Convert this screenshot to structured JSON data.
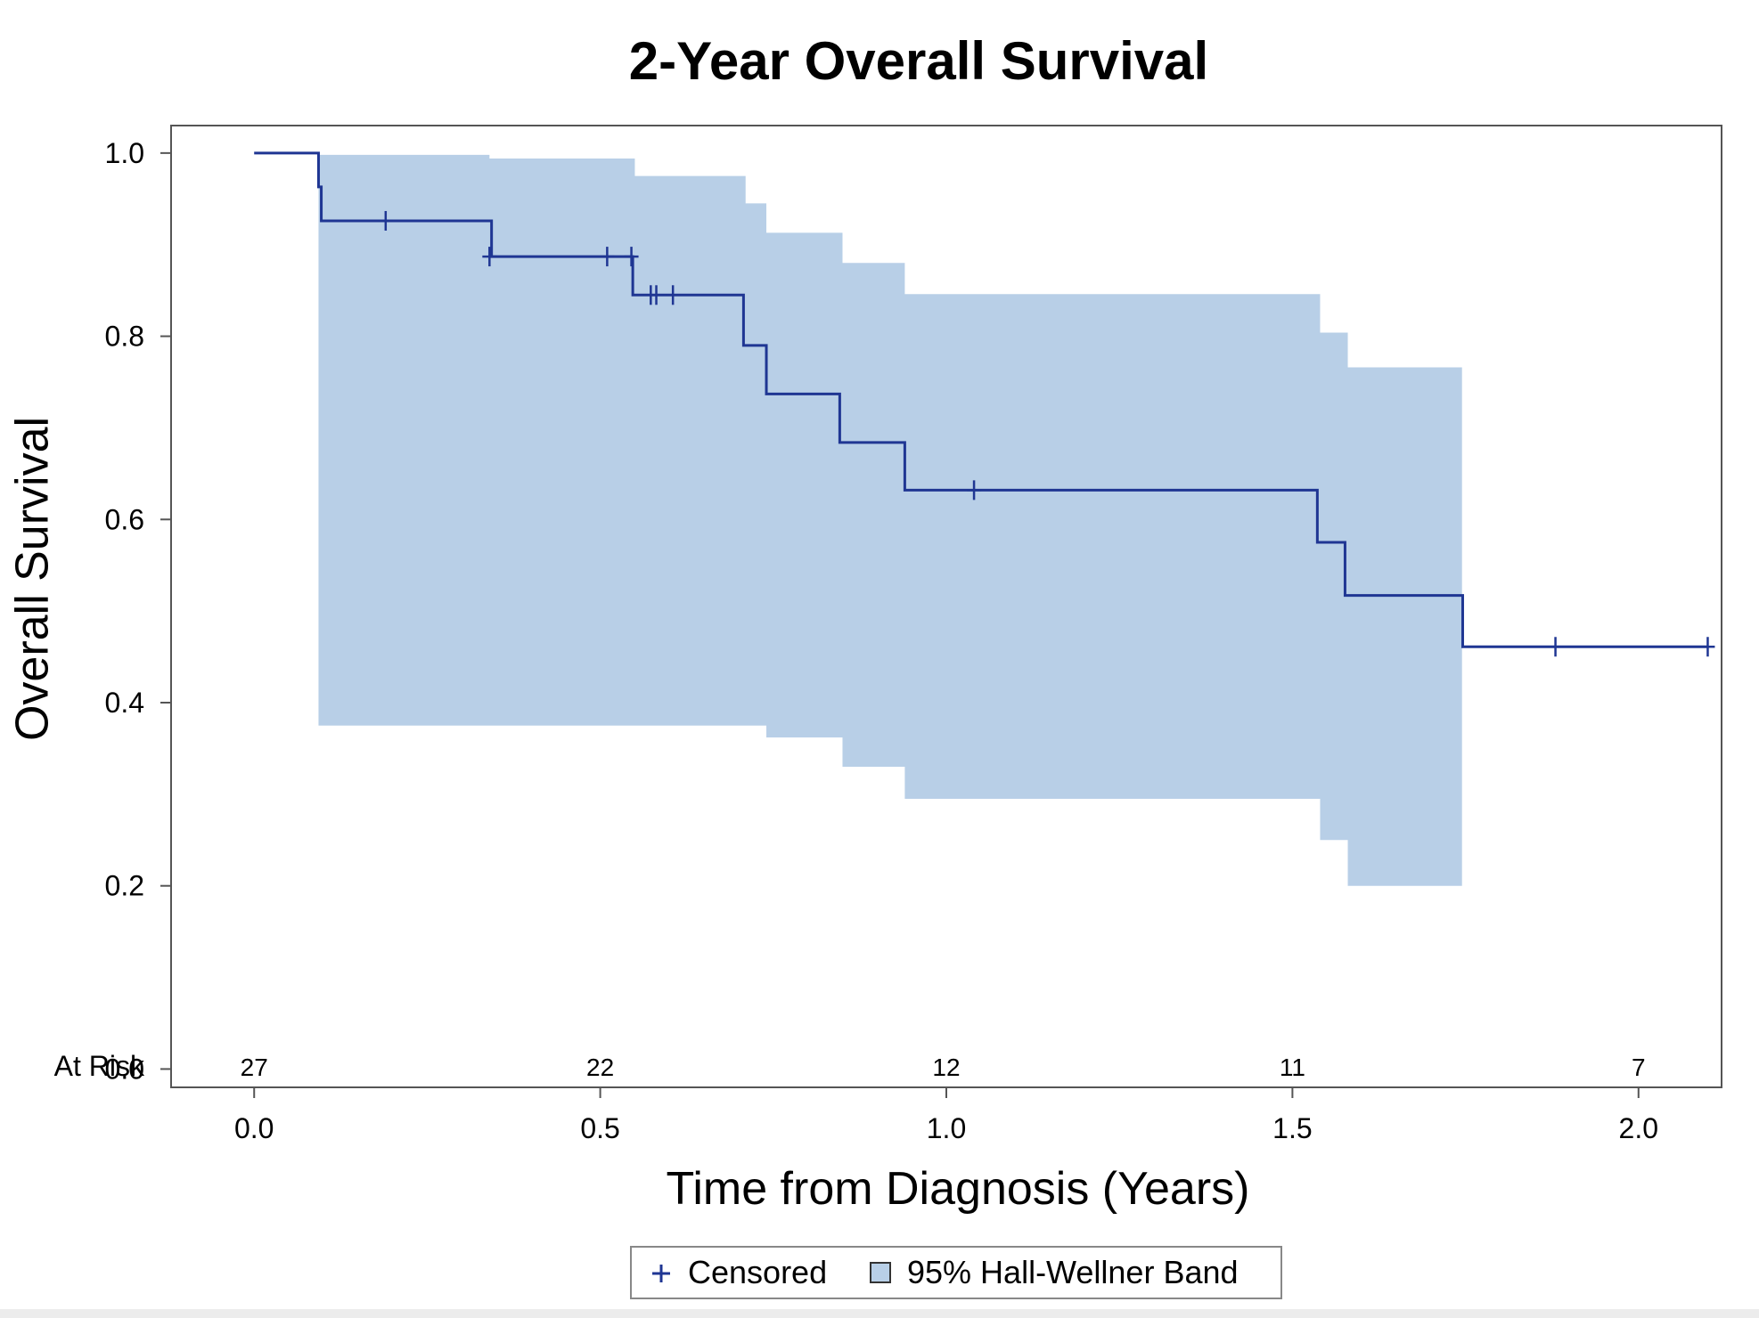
{
  "chart_data": {
    "type": "line",
    "title": "2-Year Overall Survival",
    "xlabel": "Time from Diagnosis (Years)",
    "ylabel": "Overall Survival",
    "xlim": [
      -0.12,
      2.12
    ],
    "ylim": [
      -0.02,
      1.03
    ],
    "x_ticks": [
      "0.0",
      "0.5",
      "1.0",
      "1.5",
      "2.0"
    ],
    "y_ticks": [
      "0.0",
      "0.2",
      "0.4",
      "0.6",
      "0.8",
      "1.0"
    ],
    "grid": false,
    "colors": {
      "survival_line": "#1f3693",
      "band_fill": "#b8cfe7",
      "axis": "#555555"
    },
    "series": [
      {
        "name": "Survival",
        "kind": "step",
        "x": [
          0.0,
          0.093,
          0.097,
          0.343,
          0.547,
          0.707,
          0.74,
          0.846,
          0.94,
          1.536,
          1.576,
          1.746,
          2.1
        ],
        "y": [
          1.0,
          0.963,
          0.926,
          0.887,
          0.845,
          0.79,
          0.737,
          0.684,
          0.632,
          0.575,
          0.517,
          0.461,
          0.461
        ]
      },
      {
        "name": "Censored",
        "kind": "marker",
        "x": [
          0.19,
          0.34,
          0.51,
          0.545,
          0.573,
          0.581,
          0.605,
          1.04,
          1.88,
          2.1
        ],
        "y": [
          0.926,
          0.887,
          0.887,
          0.887,
          0.845,
          0.845,
          0.845,
          0.632,
          0.461,
          0.461
        ]
      },
      {
        "name": "95% Hall-Wellner Band",
        "kind": "band",
        "x": [
          0.093,
          0.34,
          0.55,
          0.71,
          0.74,
          0.85,
          0.94,
          1.54,
          1.58,
          1.745
        ],
        "upper": [
          0.998,
          0.994,
          0.975,
          0.945,
          0.913,
          0.88,
          0.846,
          0.804,
          0.766,
          0.766
        ],
        "lower": [
          0.375,
          0.375,
          0.375,
          0.375,
          0.362,
          0.33,
          0.295,
          0.25,
          0.2,
          0.2
        ]
      }
    ],
    "at_risk": {
      "label": "At Risk",
      "x": [
        0.0,
        0.5,
        1.0,
        1.5,
        2.0
      ],
      "values": [
        "27",
        "22",
        "12",
        "11",
        "7"
      ]
    },
    "legend": {
      "position": "bottom",
      "items": [
        {
          "label": "Censored",
          "symbol": "+"
        },
        {
          "label": "95% Hall-Wellner Band",
          "symbol": "square"
        }
      ]
    }
  }
}
